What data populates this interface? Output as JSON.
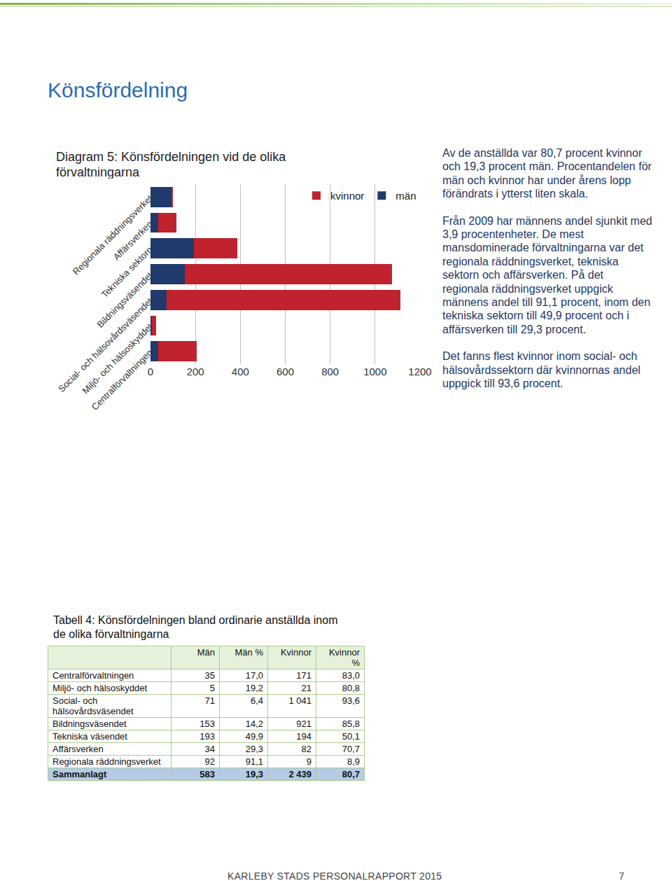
{
  "heading": "Könsfördelning",
  "chart_data": {
    "type": "bar",
    "title": "Diagram 5: Könsfördelningen vid de olika förvaltningarna",
    "orientation": "horizontal",
    "stacked": true,
    "categories": [
      "Regionala räddningsverket",
      "Affärsverken",
      "Tekniska sektorn",
      "Bildningsväsendet",
      "Social- och hälsovårdsväsendet",
      "Miljö- och hälsoskyddet",
      "Centralförvaltningen"
    ],
    "series": [
      {
        "name": "män",
        "color": "#1f3a6b",
        "values": [
          92,
          34,
          193,
          153,
          71,
          5,
          35
        ]
      },
      {
        "name": "kvinnor",
        "color": "#c0222e",
        "values": [
          9,
          82,
          194,
          921,
          1041,
          21,
          171
        ]
      }
    ],
    "xlim": [
      0,
      1200
    ],
    "xticks": [
      0,
      200,
      400,
      600,
      800,
      1000,
      1200
    ],
    "grid": true,
    "legend": "top right"
  },
  "text": [
    "Av de anställda var 80,7 procent kvinnor och 19,3 procent män. Procentandelen för män och kvinnor har under årens lopp förändrats i ytterst liten skala.",
    "Från 2009 har männens andel sjunkit med 3,9 procentenheter. De mest mansdominerade förvaltningarna var det regionala räddningsverket, tekniska sektorn och affärsverken. På det regionala räddningsverket uppgick männens andel till 91,1 procent, inom den tekniska sektorn till 49,9 procent och i affärsverken till 29,3 procent.",
    "Det fanns flest kvinnor inom social- och hälsovårdssektorn där kvinnornas andel uppgick till 93,6 procent."
  ],
  "table": {
    "title": "Tabell 4: Könsfördelningen bland ordinarie anställda inom de olika förvaltningarna",
    "header": [
      "",
      "Män",
      "Män %",
      "Kvinnor",
      "Kvinnor %"
    ],
    "rows": [
      [
        "Centralförvaltningen",
        "35",
        "17,0",
        "171",
        "83,0"
      ],
      [
        "Miljö- och hälsoskyddet",
        "5",
        "19,2",
        "21",
        "80,8"
      ],
      [
        "Social- och hälsovårdsväsendet",
        "71",
        "6,4",
        "1 041",
        "93,6"
      ],
      [
        "Bildningsväsendet",
        "153",
        "14,2",
        "921",
        "85,8"
      ],
      [
        "Tekniska väsendet",
        "193",
        "49,9",
        "194",
        "50,1"
      ],
      [
        "Affärsverken",
        "34",
        "29,3",
        "82",
        "70,7"
      ],
      [
        "Regionala räddningsverket",
        "92",
        "91,1",
        "9",
        "8,9"
      ]
    ],
    "total": [
      "Sammanlagt",
      "583",
      "19,3",
      "2 439",
      "80,7"
    ]
  },
  "footer": {
    "text": "KARLEBY STADS PERSONALRAPPORT 2015",
    "page": "7"
  }
}
